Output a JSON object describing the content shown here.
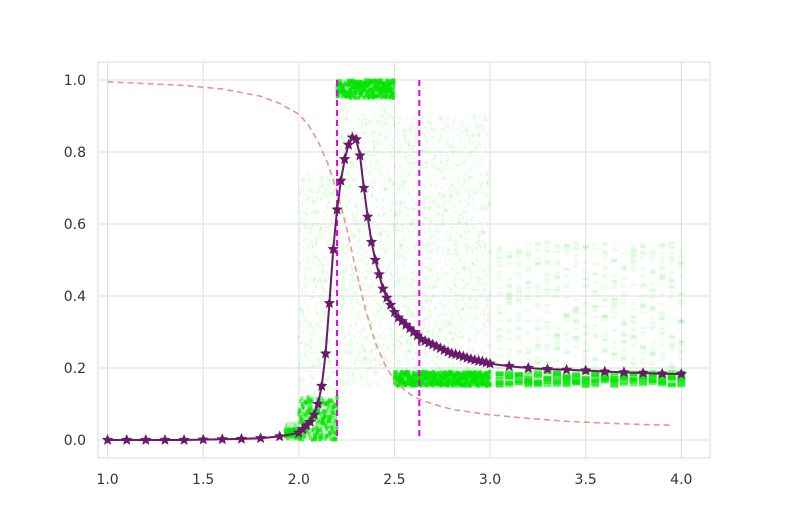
{
  "chart_data": {
    "type": "line",
    "title": "",
    "xlabel": "",
    "ylabel": "",
    "xlim": [
      0.95,
      4.15
    ],
    "ylim": [
      -0.05,
      1.05
    ],
    "grid": true,
    "x_ticks": [
      1.0,
      1.5,
      2.0,
      2.5,
      3.0,
      3.5,
      4.0
    ],
    "x_tick_labels": [
      "1.0",
      "1.5",
      "2.0",
      "2.5",
      "3.0",
      "3.5",
      "4.0"
    ],
    "y_ticks": [
      0.0,
      0.2,
      0.4,
      0.6,
      0.8,
      1.0
    ],
    "y_tick_labels": [
      "0.0",
      "0.2",
      "0.4",
      "0.6",
      "0.8",
      "1.0"
    ],
    "vertical_lines": [
      {
        "x": 2.2,
        "color": "#e500e5",
        "style": "dashed"
      },
      {
        "x": 2.63,
        "color": "#e500e5",
        "style": "dashed"
      }
    ],
    "series": [
      {
        "style": "line-with-star-markers",
        "color": "#6a1a6a",
        "x": [
          1.0,
          1.1,
          1.2,
          1.3,
          1.4,
          1.5,
          1.6,
          1.7,
          1.8,
          1.9,
          2.0,
          2.02,
          2.04,
          2.06,
          2.08,
          2.1,
          2.12,
          2.14,
          2.16,
          2.18,
          2.2,
          2.22,
          2.24,
          2.26,
          2.28,
          2.3,
          2.32,
          2.34,
          2.36,
          2.38,
          2.4,
          2.42,
          2.44,
          2.46,
          2.48,
          2.5,
          2.52,
          2.54,
          2.56,
          2.58,
          2.6,
          2.62,
          2.64,
          2.66,
          2.68,
          2.7,
          2.72,
          2.74,
          2.76,
          2.78,
          2.8,
          2.82,
          2.84,
          2.86,
          2.88,
          2.9,
          2.92,
          2.94,
          2.96,
          2.98,
          3.0,
          3.1,
          3.2,
          3.3,
          3.4,
          3.5,
          3.6,
          3.7,
          3.8,
          3.9,
          4.0
        ],
        "y": [
          0.0,
          0.0,
          0.0,
          0.0,
          0.0,
          0.001,
          0.002,
          0.003,
          0.005,
          0.01,
          0.02,
          0.03,
          0.04,
          0.05,
          0.07,
          0.1,
          0.15,
          0.24,
          0.38,
          0.53,
          0.64,
          0.72,
          0.78,
          0.82,
          0.84,
          0.835,
          0.79,
          0.7,
          0.62,
          0.55,
          0.5,
          0.46,
          0.42,
          0.395,
          0.375,
          0.355,
          0.34,
          0.33,
          0.32,
          0.31,
          0.3,
          0.29,
          0.28,
          0.275,
          0.27,
          0.265,
          0.26,
          0.255,
          0.25,
          0.245,
          0.24,
          0.238,
          0.235,
          0.232,
          0.228,
          0.225,
          0.222,
          0.22,
          0.218,
          0.215,
          0.212,
          0.205,
          0.2,
          0.197,
          0.195,
          0.193,
          0.19,
          0.188,
          0.186,
          0.184,
          0.183
        ]
      },
      {
        "style": "dashed-line",
        "color": "#e8958a",
        "x": [
          1.0,
          1.2,
          1.4,
          1.6,
          1.8,
          1.9,
          2.0,
          2.05,
          2.1,
          2.15,
          2.2,
          2.25,
          2.3,
          2.35,
          2.4,
          2.45,
          2.5,
          2.55,
          2.6,
          2.7,
          2.8,
          3.0,
          3.2,
          3.4,
          3.6,
          3.8,
          3.95
        ],
        "y": [
          0.995,
          0.99,
          0.985,
          0.975,
          0.955,
          0.935,
          0.905,
          0.875,
          0.83,
          0.77,
          0.69,
          0.59,
          0.47,
          0.36,
          0.27,
          0.21,
          0.165,
          0.14,
          0.12,
          0.1,
          0.085,
          0.07,
          0.06,
          0.052,
          0.047,
          0.043,
          0.041
        ]
      }
    ],
    "scatter_cloud": {
      "color": "#00e600",
      "description_free": true,
      "columns": [
        {
          "x_range": [
            1.93,
            2.0
          ],
          "y_range": [
            0.0,
            0.05
          ],
          "dense_range": [
            0.005,
            0.03
          ]
        },
        {
          "x_range": [
            2.0,
            2.2
          ],
          "y_range": [
            0.0,
            0.75
          ],
          "dense_range": [
            0.0,
            0.12
          ]
        },
        {
          "x_range": [
            2.2,
            2.27
          ],
          "y_range": [
            0.15,
            1.0
          ],
          "dense_range": [
            0.95,
            1.0
          ]
        },
        {
          "x_range": [
            2.27,
            2.5
          ],
          "y_range": [
            0.15,
            1.0
          ],
          "dense_range": [
            0.95,
            1.0
          ]
        },
        {
          "x_range": [
            2.5,
            3.0
          ],
          "y_range": [
            0.15,
            0.9
          ],
          "dense_range": [
            0.15,
            0.19
          ]
        },
        {
          "x_range": [
            3.05,
            4.0
          ],
          "y_range": [
            0.15,
            0.55
          ],
          "dense_range": [
            0.15,
            0.19
          ],
          "discrete_step": 0.05
        }
      ]
    }
  }
}
